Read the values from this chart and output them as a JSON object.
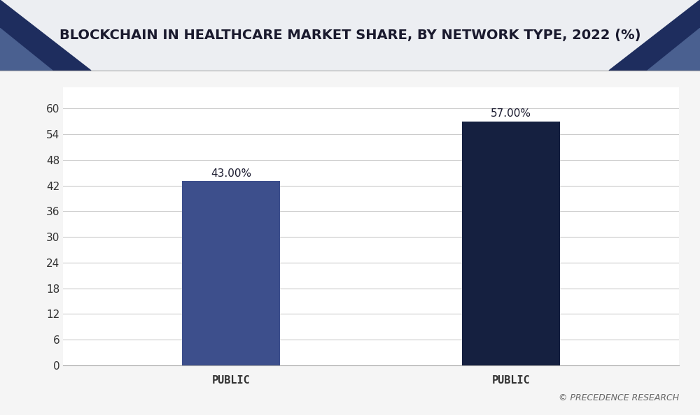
{
  "title": "BLOCKCHAIN IN HEALTHCARE MARKET SHARE, BY NETWORK TYPE, 2022 (%)",
  "categories": [
    "PUBLIC",
    "PUBLIC"
  ],
  "values": [
    43.0,
    57.0
  ],
  "labels": [
    "43.00%",
    "57.00%"
  ],
  "bar_colors": [
    "#3d4f8c",
    "#152040"
  ],
  "background_color": "#f5f5f5",
  "plot_bg_color": "#ffffff",
  "title_color": "#1a1a2e",
  "tick_label_color": "#333333",
  "ylabel_ticks": [
    0,
    6,
    12,
    18,
    24,
    30,
    36,
    42,
    48,
    54,
    60
  ],
  "ylim": [
    0,
    65
  ],
  "grid_color": "#cccccc",
  "title_fontsize": 14,
  "annotation_color": "#1a1a2e",
  "watermark": "© PRECEDENCE RESEARCH",
  "header_bg_color": "#eceef2",
  "header_dark_color": "#1e2d5e",
  "header_mid_color": "#4a6090",
  "bar_width": 0.35,
  "x_positions": [
    1,
    2
  ],
  "xlim": [
    0.4,
    2.6
  ]
}
